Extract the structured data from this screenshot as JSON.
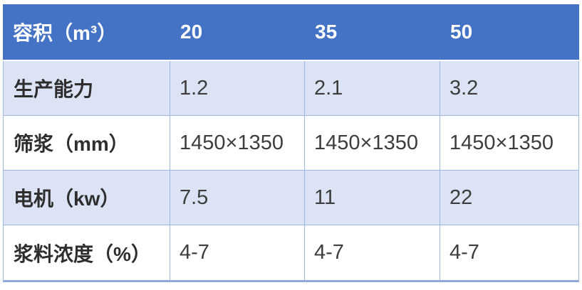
{
  "table": {
    "header": {
      "col0": "容积（m³）",
      "col1": "20",
      "col2": "35",
      "col3": "50"
    },
    "rows": [
      {
        "label": "生产能力",
        "values": [
          "1.2",
          "2.1",
          "3.2"
        ]
      },
      {
        "label": "筛浆（mm）",
        "values": [
          "1450×1350",
          "1450×1350",
          "1450×1350"
        ]
      },
      {
        "label": "电机（kw）",
        "values": [
          "7.5",
          "11",
          "22"
        ]
      },
      {
        "label": "浆料浓度（%）",
        "values": [
          "4-7",
          "4-7",
          "4-7"
        ]
      }
    ],
    "colors": {
      "header_bg": "#4472C4",
      "header_text": "#FFFFFF",
      "banded_row_bg": "#DBE3F4",
      "plain_row_bg": "#FFFFFF",
      "inner_border": "#9FB6E0",
      "outer_bottom_border": "#8EA9DB",
      "label_text": "#2E2E2E",
      "value_text": "#3D3D3D"
    }
  }
}
